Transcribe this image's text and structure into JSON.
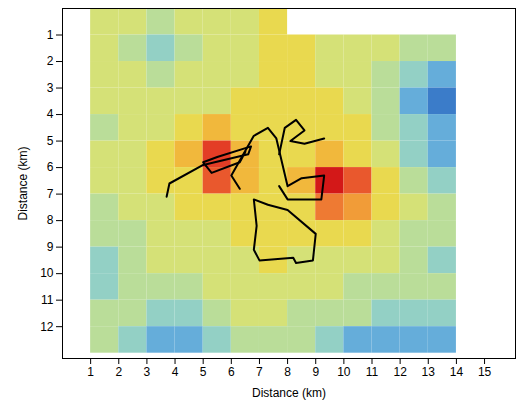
{
  "chart_data": {
    "type": "heatmap",
    "xlabel": "Distance (km)",
    "ylabel": "Distance (km)",
    "xlim": [
      0,
      16.1
    ],
    "ylim": [
      13.2,
      0
    ],
    "xticks": [
      1,
      2,
      3,
      4,
      5,
      6,
      7,
      8,
      9,
      10,
      11,
      12,
      13,
      14,
      15
    ],
    "yticks": [
      1,
      2,
      3,
      4,
      5,
      6,
      7,
      8,
      9,
      10,
      11,
      12
    ],
    "zlim": [
      0,
      10
    ],
    "cells": {
      "x": [
        1.5,
        2.5,
        3.5,
        4.5,
        5.5,
        6.5,
        7.5,
        8.5,
        9.5,
        10.5,
        11.5,
        12.5,
        13.5
      ],
      "y": [
        0.5,
        1.5,
        2.5,
        3.5,
        4.5,
        5.5,
        6.5,
        7.5,
        8.5,
        9.5,
        10.5,
        11.5,
        12.5
      ],
      "values": [
        [
          5,
          5,
          4,
          5,
          5,
          5,
          6,
          null,
          null,
          null,
          null,
          null,
          null
        ],
        [
          5,
          4,
          3,
          4,
          5,
          5,
          6,
          6,
          5,
          5,
          5,
          4,
          4
        ],
        [
          5,
          5,
          4,
          5,
          5,
          5,
          6,
          6,
          5,
          5,
          4,
          3,
          2
        ],
        [
          5,
          5,
          5,
          5,
          5,
          6,
          6,
          6,
          6,
          5,
          4,
          2,
          1
        ],
        [
          4,
          5,
          5,
          6,
          7,
          6,
          6,
          6,
          6,
          6,
          4,
          3,
          2
        ],
        [
          5,
          5,
          6,
          7,
          9,
          7,
          6,
          6,
          7,
          6,
          5,
          3,
          2
        ],
        [
          5,
          5,
          6,
          6,
          8.5,
          7,
          6,
          7,
          10,
          8.5,
          6,
          4,
          3
        ],
        [
          4,
          5,
          5,
          6,
          6,
          6,
          6,
          6,
          8,
          7.5,
          6,
          5,
          4
        ],
        [
          4,
          4,
          5,
          5,
          5,
          6,
          6,
          6,
          6,
          6,
          5,
          4,
          4
        ],
        [
          3,
          4,
          5,
          5,
          5,
          5,
          6,
          5,
          5,
          5,
          5,
          4,
          3
        ],
        [
          3,
          4,
          4,
          4,
          5,
          5,
          5,
          5,
          5,
          4,
          4,
          4,
          4
        ],
        [
          4,
          4,
          3,
          3,
          4,
          5,
          5,
          4,
          4,
          4,
          3,
          3,
          3
        ],
        [
          4,
          3,
          2,
          2,
          3,
          4,
          4,
          4,
          3,
          2,
          2,
          2,
          2
        ]
      ]
    },
    "series": [
      {
        "type": "line",
        "color": "#000000",
        "x": [
          3.7,
          3.8,
          5.0,
          6.6,
          6.7,
          5.5,
          5.0,
          5.3,
          6.3,
          6.5
        ],
        "y": [
          7.1,
          6.6,
          5.9,
          5.5,
          5.2,
          5.6,
          5.8,
          6.2,
          5.8,
          5.4
        ]
      },
      {
        "type": "line",
        "color": "#000000",
        "x": [
          6.3,
          6.0,
          6.8,
          7.3,
          7.6,
          8.0,
          8.5,
          9.3,
          9.2,
          8.0,
          7.7
        ],
        "y": [
          6.8,
          6.3,
          4.8,
          4.5,
          4.9,
          6.7,
          6.4,
          6.3,
          7.2,
          7.2,
          6.7
        ]
      },
      {
        "type": "line",
        "color": "#000000",
        "x": [
          7.7,
          7.9,
          8.3,
          8.6,
          8.1,
          8.6,
          9.3
        ],
        "y": [
          5.5,
          4.5,
          4.2,
          4.6,
          5.0,
          5.1,
          4.9
        ]
      },
      {
        "type": "line",
        "color": "#000000",
        "x": [
          7.3,
          6.8,
          6.9,
          6.8,
          7.0,
          8.2,
          8.3,
          8.9,
          9.0,
          8.0,
          7.3
        ],
        "y": [
          7.4,
          7.2,
          8.2,
          9.1,
          9.5,
          9.4,
          9.6,
          9.5,
          8.5,
          7.6,
          7.4
        ]
      }
    ]
  }
}
